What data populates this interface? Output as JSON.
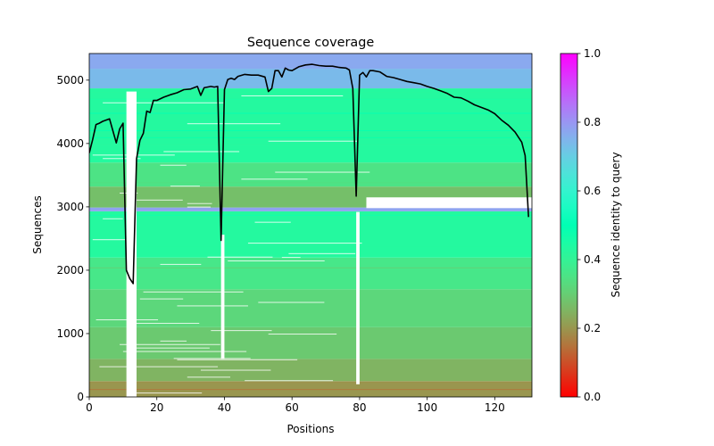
{
  "chart_data": {
    "type": "heatmap",
    "title": "Sequence coverage",
    "xlabel": "Positions",
    "ylabel": "Sequences",
    "xlim": [
      0,
      131
    ],
    "ylim": [
      0,
      5420
    ],
    "x_ticks": [
      0,
      20,
      40,
      60,
      80,
      100,
      120
    ],
    "y_ticks": [
      0,
      1000,
      2000,
      3000,
      4000,
      5000
    ],
    "colorbar": {
      "label": "Sequence identity to query",
      "colormap": "rainbow_r",
      "range": [
        0.0,
        1.0
      ],
      "ticks": [
        "0.0",
        "0.2",
        "0.4",
        "0.6",
        "0.8",
        "1.0"
      ]
    },
    "identity_bands": [
      {
        "from": 0,
        "to": 250,
        "identity": 0.2
      },
      {
        "from": 250,
        "to": 600,
        "identity": 0.25
      },
      {
        "from": 600,
        "to": 1100,
        "identity": 0.29
      },
      {
        "from": 1100,
        "to": 1700,
        "identity": 0.32
      },
      {
        "from": 1700,
        "to": 2200,
        "identity": 0.36
      },
      {
        "from": 2200,
        "to": 2930,
        "identity": 0.43
      },
      {
        "from": 2930,
        "to": 2990,
        "identity": 0.78
      },
      {
        "from": 2990,
        "to": 3320,
        "identity": 0.27
      },
      {
        "from": 3320,
        "to": 3700,
        "identity": 0.35
      },
      {
        "from": 3700,
        "to": 4870,
        "identity": 0.43
      },
      {
        "from": 4870,
        "to": 5180,
        "identity": 0.74
      },
      {
        "from": 5180,
        "to": 5420,
        "identity": 0.77
      }
    ],
    "gaps": [
      {
        "x0": 11,
        "x1": 14,
        "y0": 0,
        "y1": 4820
      },
      {
        "x0": 39,
        "x1": 40,
        "y0": 600,
        "y1": 2560
      },
      {
        "x0": 79,
        "x1": 80,
        "y0": 200,
        "y1": 2920
      },
      {
        "x0": 82,
        "x1": 131,
        "y0": 2980,
        "y1": 3150
      }
    ],
    "series": [
      {
        "name": "coverage",
        "color": "#000000",
        "x": [
          0,
          1,
          2,
          3,
          4,
          5,
          6,
          7,
          8,
          9,
          10,
          11,
          12,
          13,
          14,
          15,
          16,
          17,
          18,
          19,
          20,
          22,
          24,
          26,
          28,
          30,
          32,
          33,
          34,
          35,
          36,
          37,
          38,
          39,
          40,
          41,
          42,
          43,
          44,
          46,
          48,
          50,
          52,
          53,
          54,
          55,
          56,
          57,
          58,
          59,
          60,
          62,
          64,
          66,
          68,
          70,
          72,
          74,
          76,
          77,
          78,
          79,
          80,
          81,
          82,
          83,
          84,
          86,
          88,
          90,
          92,
          94,
          96,
          98,
          100,
          102,
          104,
          106,
          108,
          110,
          112,
          114,
          116,
          118,
          120,
          122,
          124,
          126,
          128,
          129,
          130
        ],
        "y": [
          3850,
          4060,
          4300,
          4320,
          4350,
          4370,
          4390,
          4200,
          4010,
          4230,
          4320,
          2000,
          1870,
          1790,
          3760,
          4050,
          4160,
          4510,
          4490,
          4680,
          4680,
          4730,
          4770,
          4800,
          4850,
          4860,
          4900,
          4760,
          4880,
          4890,
          4900,
          4890,
          4900,
          2470,
          4850,
          5010,
          5030,
          5010,
          5060,
          5090,
          5080,
          5080,
          5050,
          4820,
          4870,
          5150,
          5150,
          5050,
          5190,
          5160,
          5150,
          5210,
          5240,
          5250,
          5230,
          5220,
          5220,
          5200,
          5190,
          5160,
          4870,
          3170,
          5080,
          5120,
          5050,
          5150,
          5150,
          5130,
          5060,
          5040,
          5010,
          4980,
          4960,
          4940,
          4900,
          4870,
          4830,
          4790,
          4730,
          4720,
          4670,
          4610,
          4570,
          4530,
          4470,
          4370,
          4290,
          4180,
          4020,
          3810,
          2840
        ]
      }
    ]
  }
}
